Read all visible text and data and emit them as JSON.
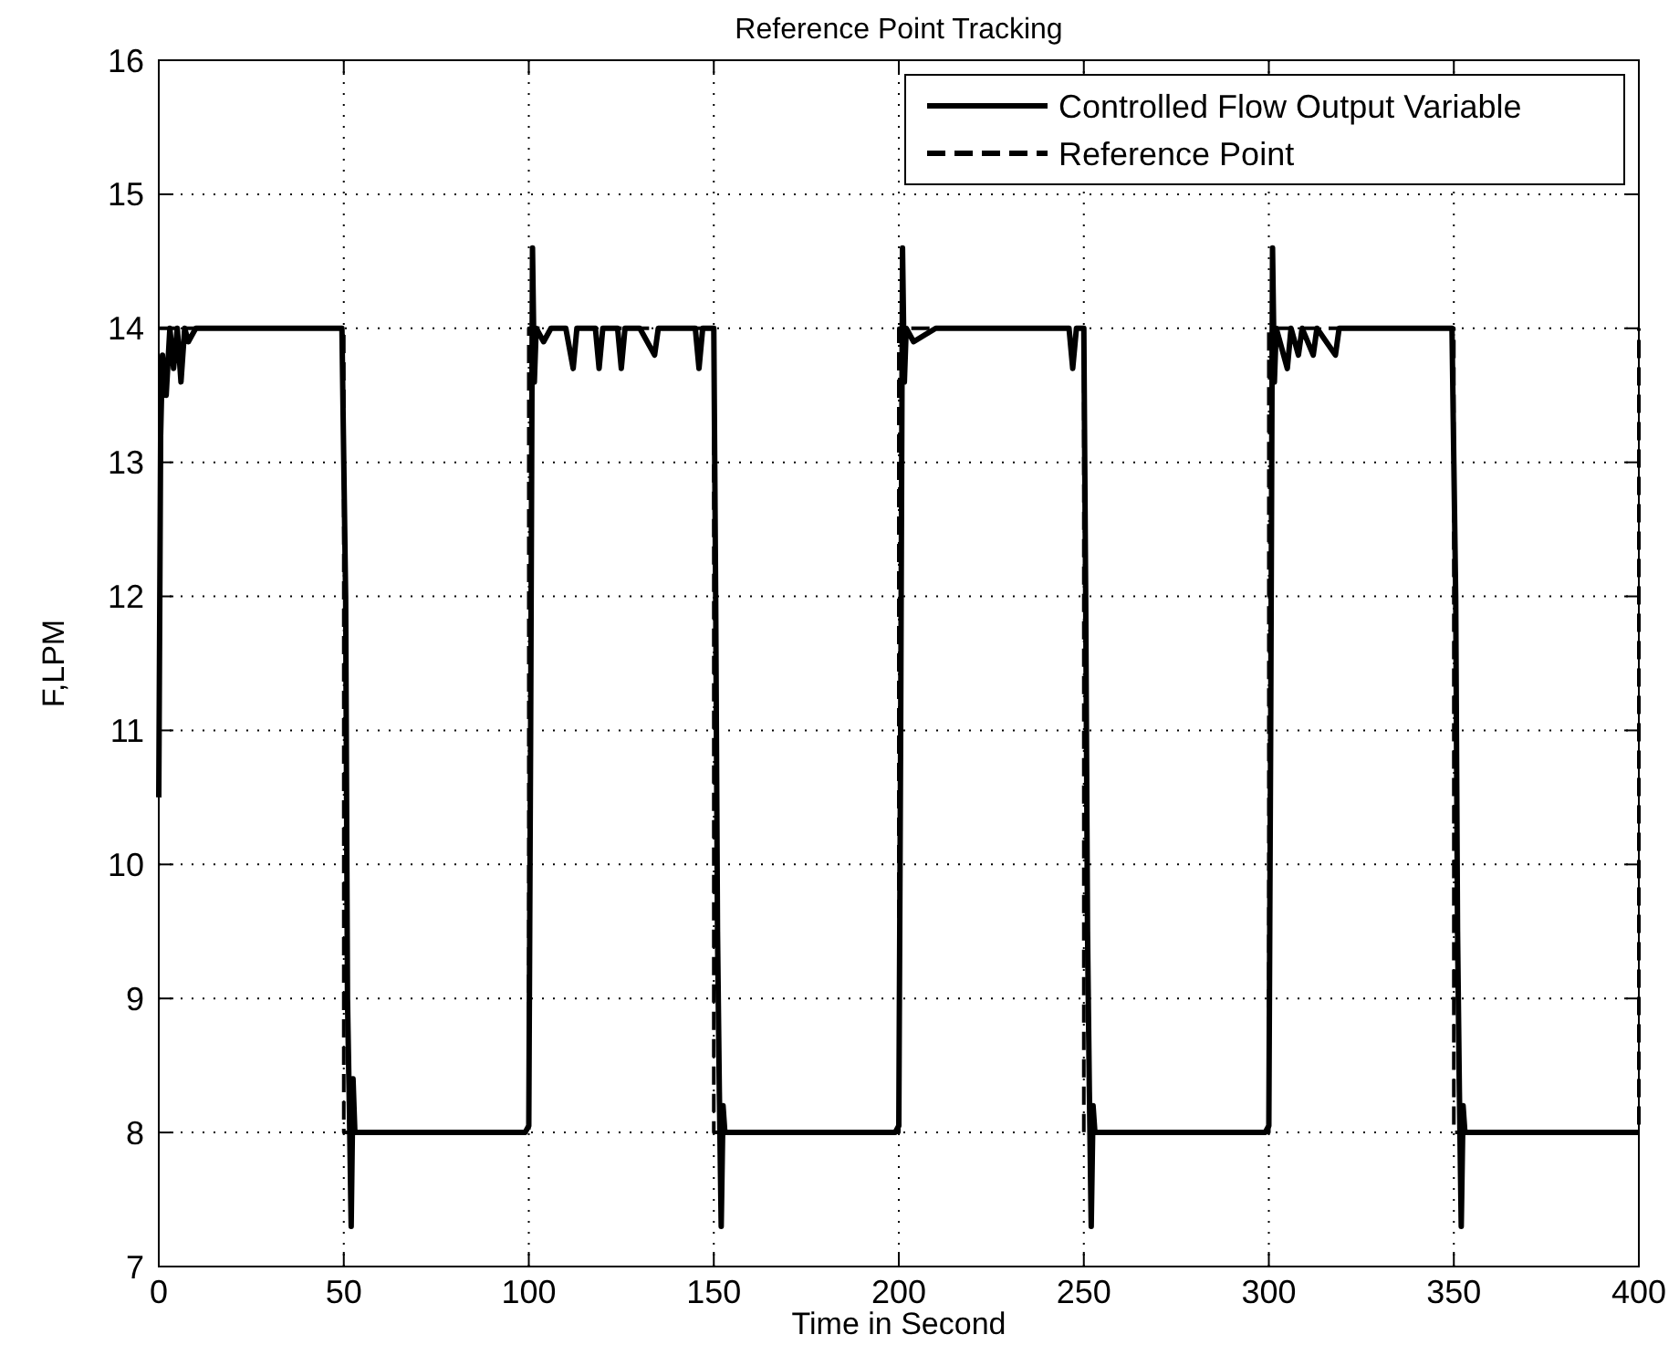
{
  "chart_data": {
    "type": "line",
    "title": "Reference Point Tracking",
    "xlabel": "Time in Second",
    "ylabel": "F,LPM",
    "xlim": [
      0,
      400
    ],
    "ylim": [
      7,
      16
    ],
    "xticks": [
      0,
      50,
      100,
      150,
      200,
      250,
      300,
      350,
      400
    ],
    "yticks": [
      7,
      8,
      9,
      10,
      11,
      12,
      13,
      14,
      15,
      16
    ],
    "grid": true,
    "legend": "top right",
    "series": [
      {
        "name": "Controlled Flow Output Variable",
        "color": "#000000",
        "line_style": "solid",
        "x": [
          0,
          0.5,
          1,
          2,
          3,
          4,
          5,
          6,
          7,
          8,
          10,
          20,
          30,
          40,
          49.5,
          50.5,
          51,
          51.5,
          52,
          52.5,
          53,
          60,
          70,
          80,
          90,
          99,
          100,
          100.5,
          101,
          101.5,
          102,
          104,
          106,
          110,
          112,
          113,
          118,
          119,
          120,
          124,
          125,
          126,
          130,
          134,
          135,
          140,
          145,
          146,
          147,
          150,
          150.5,
          151,
          151.5,
          152,
          152.5,
          153,
          160,
          170,
          180,
          190,
          199,
          200,
          200.5,
          201,
          201.5,
          202,
          204,
          210,
          220,
          230,
          240,
          246,
          247,
          248,
          250,
          250.5,
          251,
          251.5,
          252,
          252.5,
          253,
          260,
          270,
          280,
          290,
          299,
          300,
          300.5,
          301,
          301.5,
          302,
          305,
          306,
          308,
          309,
          312,
          313,
          318,
          319,
          320,
          330,
          340,
          349.5,
          350.5,
          351,
          351.5,
          352,
          352.5,
          353,
          360,
          370,
          380,
          390,
          400
        ],
        "values": [
          10.5,
          13.2,
          13.8,
          13.5,
          14,
          13.7,
          14,
          13.6,
          14,
          13.9,
          14,
          14,
          14,
          14,
          14,
          12,
          9,
          8.2,
          7.3,
          8.4,
          8,
          8,
          8,
          8,
          8,
          8,
          8.05,
          11,
          14.6,
          13.6,
          14,
          13.9,
          14,
          14,
          13.7,
          14,
          14,
          13.7,
          14,
          14,
          13.7,
          14,
          14,
          13.8,
          14,
          14,
          14,
          13.7,
          14,
          14,
          12,
          9.5,
          8.3,
          7.3,
          8.2,
          8,
          8,
          8,
          8,
          8,
          8,
          8.05,
          11,
          14.6,
          13.6,
          14,
          13.9,
          14,
          14,
          14,
          14,
          14,
          13.7,
          14,
          14,
          12,
          9.5,
          8.3,
          7.3,
          8.2,
          8,
          8,
          8,
          8,
          8,
          8,
          8.05,
          11,
          14.6,
          13.6,
          14,
          13.7,
          14,
          13.8,
          14,
          13.8,
          14,
          13.8,
          14,
          14,
          14,
          14,
          14,
          12,
          9.5,
          8.3,
          7.3,
          8.2,
          8,
          8,
          8,
          8,
          8,
          8
        ]
      },
      {
        "name": "Reference Point",
        "color": "#000000",
        "line_style": "dashed",
        "x": [
          0,
          50,
          50,
          100,
          100,
          150,
          150,
          200,
          200,
          250,
          250,
          300,
          300,
          350,
          350,
          400,
          400
        ],
        "values": [
          14,
          14,
          8,
          8,
          14,
          14,
          8,
          8,
          14,
          14,
          8,
          8,
          14,
          14,
          8,
          8,
          14
        ]
      }
    ]
  }
}
